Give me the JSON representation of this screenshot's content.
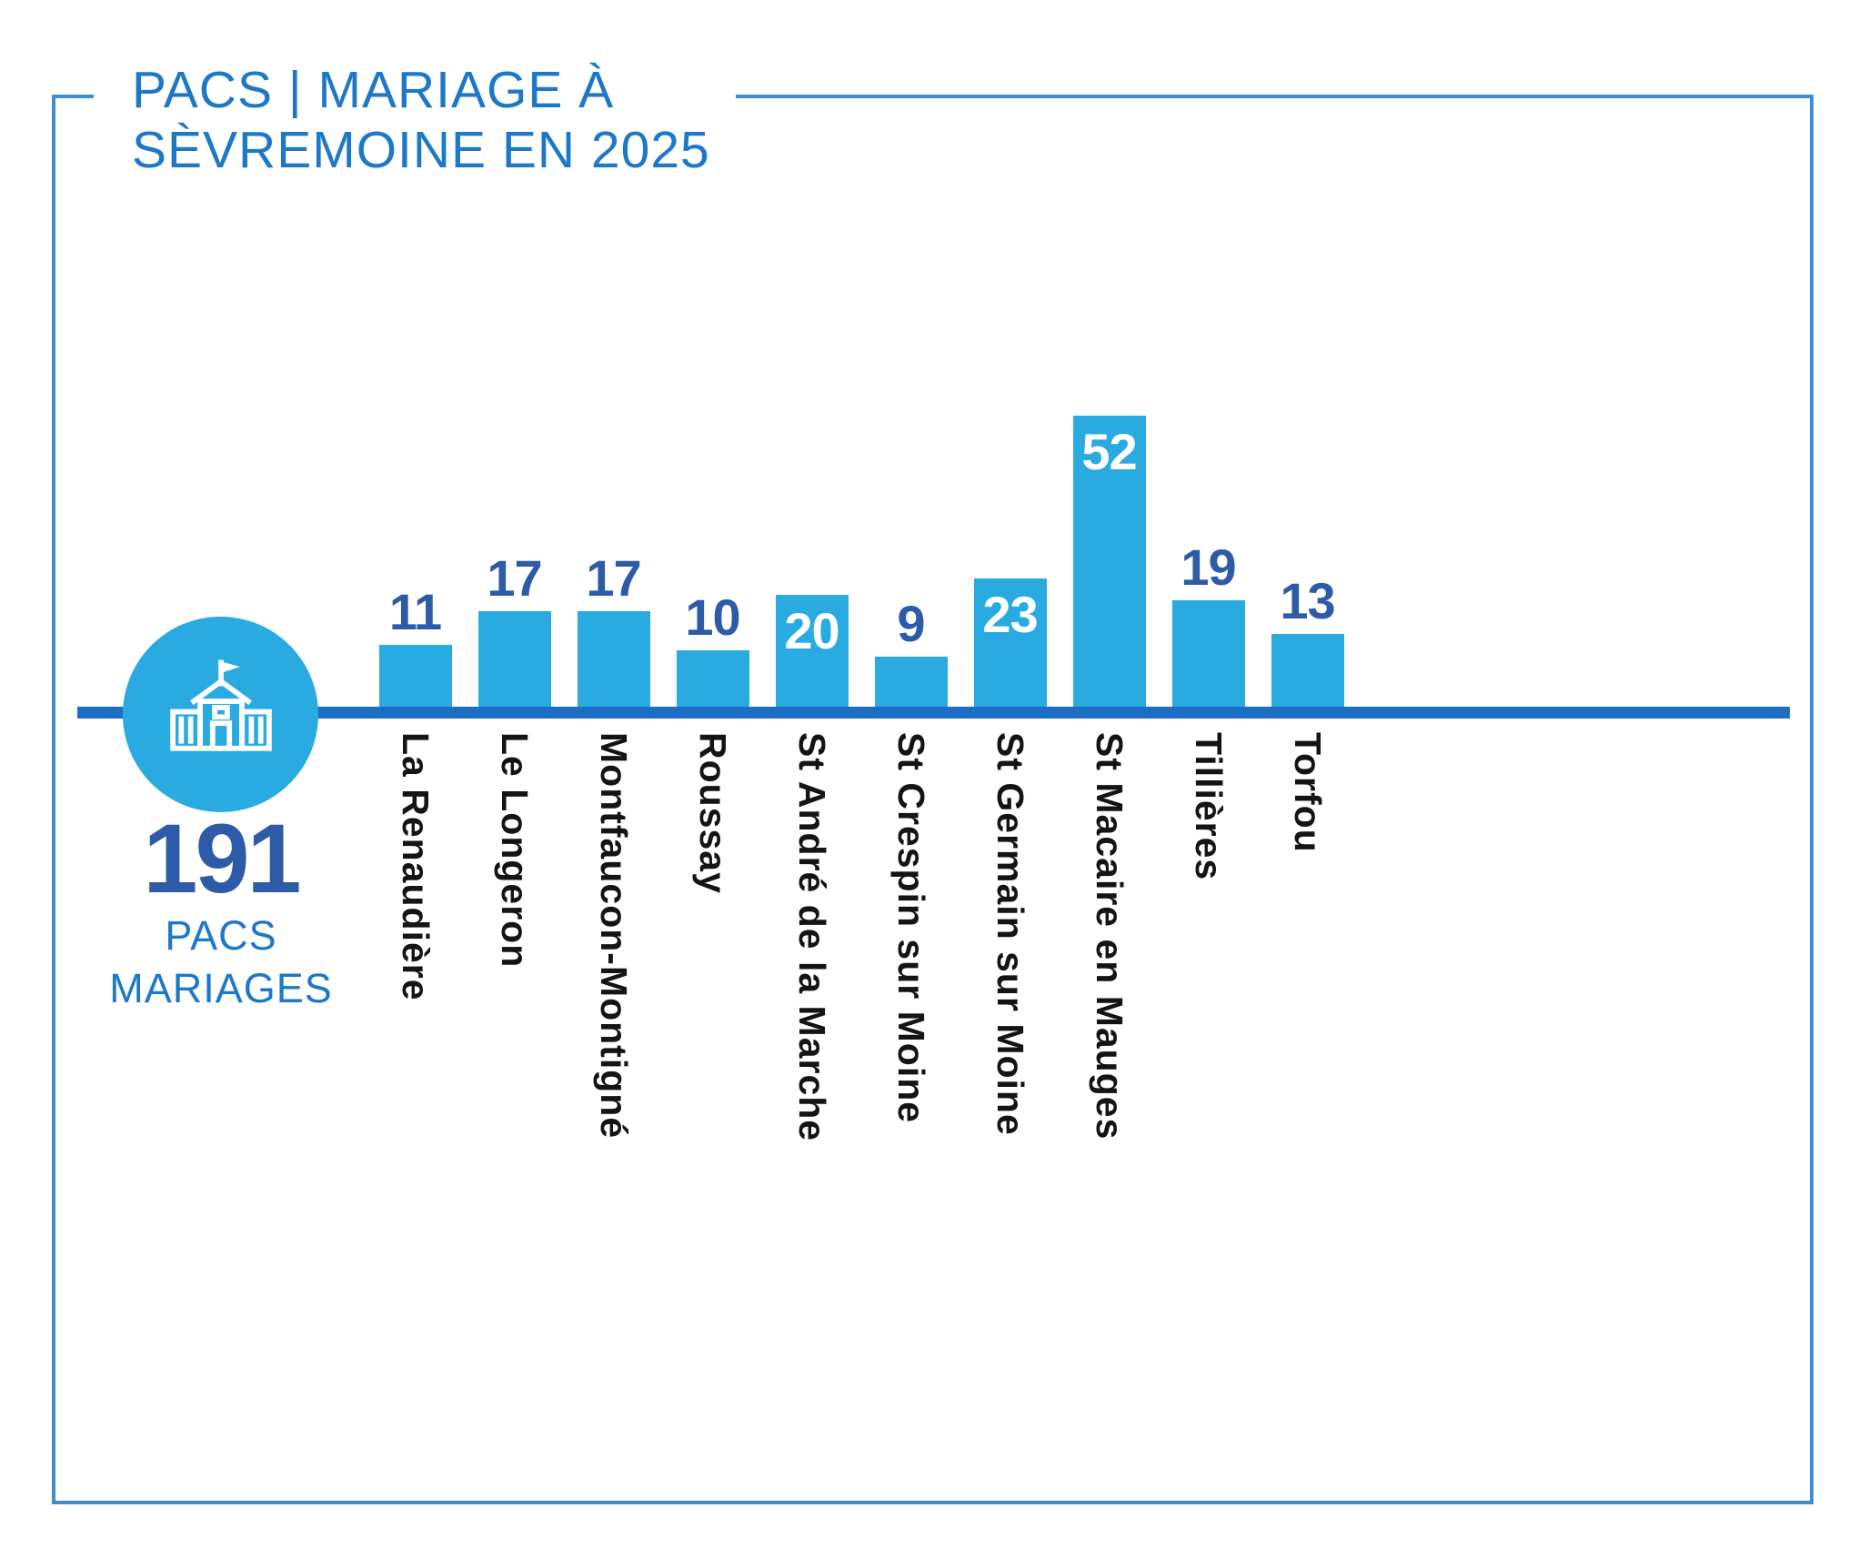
{
  "title": {
    "line1": "PACS | MARIAGE À",
    "line2": "SÈVREMOINE EN 2025"
  },
  "total": {
    "value": "191",
    "label_line1": "PACS",
    "label_line2": "MARIAGES"
  },
  "icons": {
    "badge": "town-hall-icon"
  },
  "colors": {
    "bar": "#29abe2",
    "value_dark_blue": "#2d5ba7",
    "value_white": "#ffffff",
    "title_blue": "#1e78c8",
    "baseline_blue": "#1b6ec2",
    "label_black": "#141414",
    "frame_border": "#3f8fd0"
  },
  "chart_data": {
    "type": "bar",
    "title": "PACS | MARIAGE À SÈVREMOINE EN 2025",
    "categories": [
      "La Renaudière",
      "Le Longeron",
      "Montfaucon-Montigné",
      "Roussay",
      "St André de la Marche",
      "St Crespin sur Moine",
      "St Germain sur Moine",
      "St Macaire en Mauges",
      "Tillières",
      "Torfou"
    ],
    "values": [
      11,
      17,
      17,
      10,
      20,
      9,
      23,
      52,
      19,
      13
    ],
    "value_label_position": [
      "above",
      "above",
      "above",
      "above",
      "inside",
      "above",
      "inside",
      "inside",
      "above",
      "above"
    ],
    "total": 191,
    "xlabel": "",
    "ylabel": "",
    "ylim": [
      0,
      55
    ],
    "grid": false,
    "legend": "none",
    "category_label_orientation": "vertical"
  }
}
